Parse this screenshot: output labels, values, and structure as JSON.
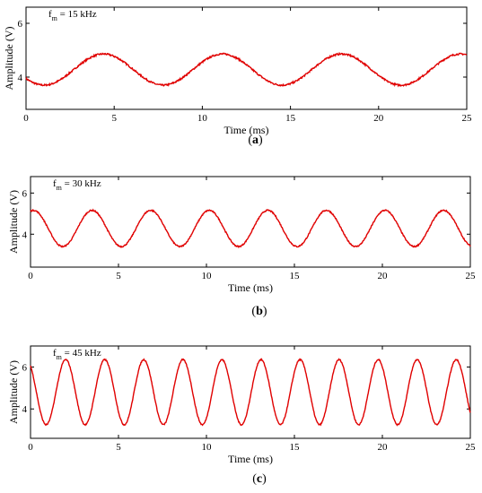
{
  "chart_data": [
    {
      "type": "line",
      "panel": "a",
      "caption_letter": "a",
      "annotation": {
        "symbol": "f",
        "subscript": "m",
        "text": " = 15 kHz"
      },
      "xlabel": "Time (ms)",
      "ylabel": "Amplitude (V)",
      "xlim": [
        0,
        25
      ],
      "ylim": [
        2.8,
        6.6
      ],
      "xticks": [
        0,
        5,
        10,
        15,
        20,
        25
      ],
      "yticks": [
        4,
        6
      ],
      "grid": false,
      "series": [
        {
          "color": "#e00000",
          "waveform": "sinusoid",
          "mean_V": 4.28,
          "amplitude_V": 0.58,
          "period_ms": 6.75,
          "peak_at_ms": 4.4,
          "duration_ms": [
            0,
            25
          ]
        }
      ]
    },
    {
      "type": "line",
      "panel": "b",
      "caption_letter": "b",
      "annotation": {
        "symbol": "f",
        "subscript": "m",
        "text": " = 30 kHz"
      },
      "xlabel": "Time (ms)",
      "ylabel": "Amplitude (V)",
      "xlim": [
        0,
        25
      ],
      "ylim": [
        2.4,
        6.8
      ],
      "xticks": [
        0,
        5,
        10,
        15,
        20,
        25
      ],
      "yticks": [
        4,
        6
      ],
      "grid": false,
      "series": [
        {
          "color": "#e00000",
          "waveform": "sinusoid",
          "mean_V": 4.28,
          "amplitude_V": 0.88,
          "period_ms": 3.33,
          "peak_at_ms": 3.5,
          "duration_ms": [
            0,
            25
          ]
        }
      ]
    },
    {
      "type": "line",
      "panel": "c",
      "caption_letter": "c",
      "annotation": {
        "symbol": "f",
        "subscript": "m",
        "text": " = 45 kHz"
      },
      "xlabel": "Time (ms)",
      "ylabel": "Amplitude (V)",
      "xlim": [
        0,
        25
      ],
      "ylim": [
        2.6,
        7.0
      ],
      "xticks": [
        0,
        5,
        10,
        15,
        20,
        25
      ],
      "yticks": [
        4,
        6
      ],
      "grid": false,
      "series": [
        {
          "color": "#e00000",
          "waveform": "sinusoid",
          "mean_V": 4.8,
          "amplitude_V": 1.55,
          "period_ms": 2.22,
          "peak_at_ms": 2.0,
          "duration_ms": [
            0,
            25
          ]
        }
      ]
    }
  ]
}
